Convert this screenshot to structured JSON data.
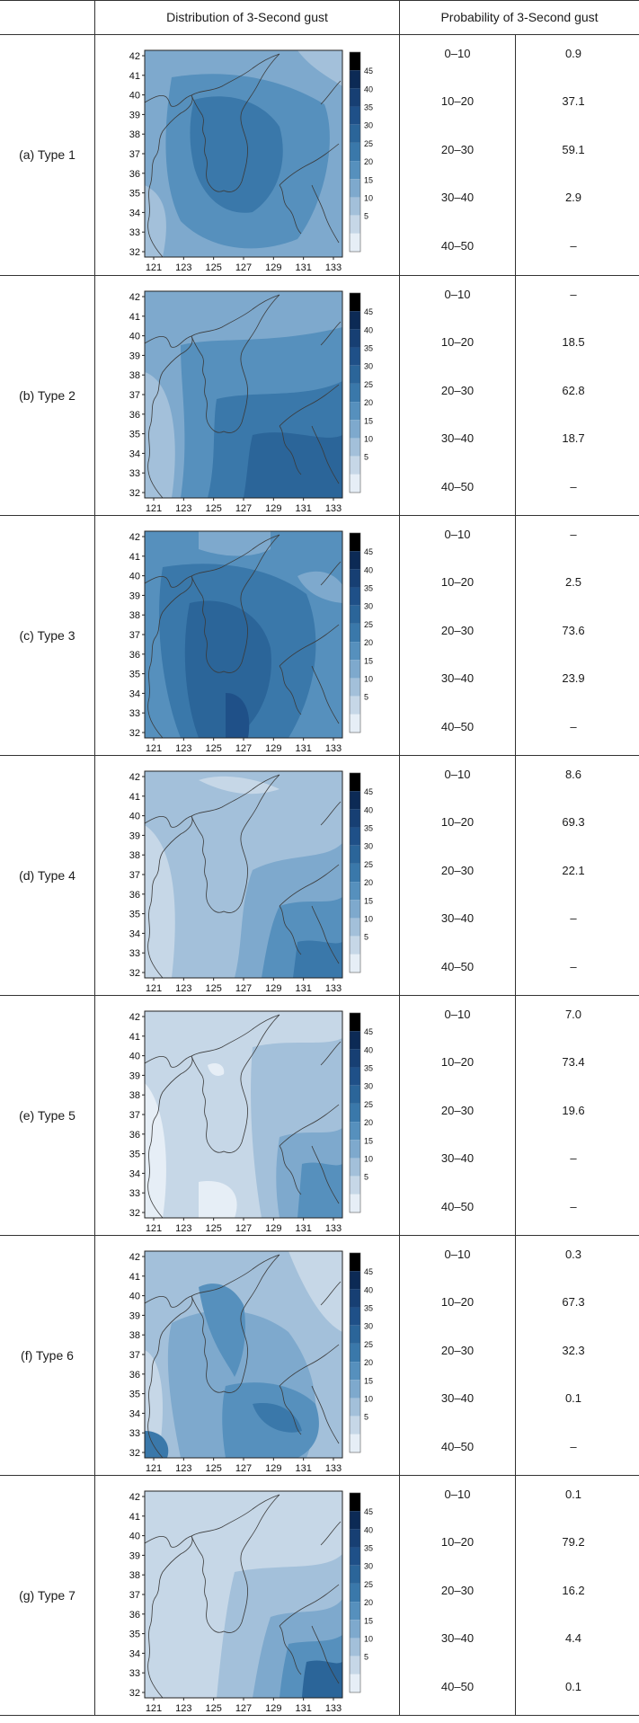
{
  "header": {
    "col_distribution": "Distribution of 3-Second gust",
    "col_probability": "Probability of 3-Second gust"
  },
  "map_axes": {
    "lat_ticks": [
      "42",
      "41",
      "40",
      "39",
      "38",
      "37",
      "36",
      "35",
      "34",
      "33",
      "32"
    ],
    "lon_ticks": [
      "121",
      "123",
      "125",
      "127",
      "129",
      "131",
      "133"
    ],
    "colorbar_ticks": [
      "45",
      "40",
      "35",
      "30",
      "25",
      "20",
      "15",
      "10",
      "5"
    ],
    "colorbar_colors": [
      "#000000",
      "#0c2a55",
      "#173f73",
      "#1f5088",
      "#2b6599",
      "#3a78aa",
      "#5690bd",
      "#7ea9cd",
      "#a3c0da",
      "#c6d7e7",
      "#e6eef6"
    ]
  },
  "rows": [
    {
      "label": "(a) Type 1",
      "bins": [
        {
          "range": "0–10",
          "prob": "0.9"
        },
        {
          "range": "10–20",
          "prob": "37.1"
        },
        {
          "range": "20–30",
          "prob": "59.1"
        },
        {
          "range": "30–40",
          "prob": "2.9"
        },
        {
          "range": "40–50",
          "prob": "–"
        }
      ]
    },
    {
      "label": "(b) Type 2",
      "bins": [
        {
          "range": "0–10",
          "prob": "–"
        },
        {
          "range": "10–20",
          "prob": "18.5"
        },
        {
          "range": "20–30",
          "prob": "62.8"
        },
        {
          "range": "30–40",
          "prob": "18.7"
        },
        {
          "range": "40–50",
          "prob": "–"
        }
      ]
    },
    {
      "label": "(c) Type 3",
      "bins": [
        {
          "range": "0–10",
          "prob": "–"
        },
        {
          "range": "10–20",
          "prob": "2.5"
        },
        {
          "range": "20–30",
          "prob": "73.6"
        },
        {
          "range": "30–40",
          "prob": "23.9"
        },
        {
          "range": "40–50",
          "prob": "–"
        }
      ]
    },
    {
      "label": "(d) Type 4",
      "bins": [
        {
          "range": "0–10",
          "prob": "8.6"
        },
        {
          "range": "10–20",
          "prob": "69.3"
        },
        {
          "range": "20–30",
          "prob": "22.1"
        },
        {
          "range": "30–40",
          "prob": "–"
        },
        {
          "range": "40–50",
          "prob": "–"
        }
      ]
    },
    {
      "label": "(e) Type 5",
      "bins": [
        {
          "range": "0–10",
          "prob": "7.0"
        },
        {
          "range": "10–20",
          "prob": "73.4"
        },
        {
          "range": "20–30",
          "prob": "19.6"
        },
        {
          "range": "30–40",
          "prob": "–"
        },
        {
          "range": "40–50",
          "prob": "–"
        }
      ]
    },
    {
      "label": "(f) Type 6",
      "bins": [
        {
          "range": "0–10",
          "prob": "0.3"
        },
        {
          "range": "10–20",
          "prob": "67.3"
        },
        {
          "range": "20–30",
          "prob": "32.3"
        },
        {
          "range": "30–40",
          "prob": "0.1"
        },
        {
          "range": "40–50",
          "prob": "–"
        }
      ]
    },
    {
      "label": "(g) Type 7",
      "bins": [
        {
          "range": "0–10",
          "prob": "0.1"
        },
        {
          "range": "10–20",
          "prob": "79.2"
        },
        {
          "range": "20–30",
          "prob": "16.2"
        },
        {
          "range": "30–40",
          "prob": "4.4"
        },
        {
          "range": "40–50",
          "prob": "0.1"
        }
      ]
    }
  ]
}
